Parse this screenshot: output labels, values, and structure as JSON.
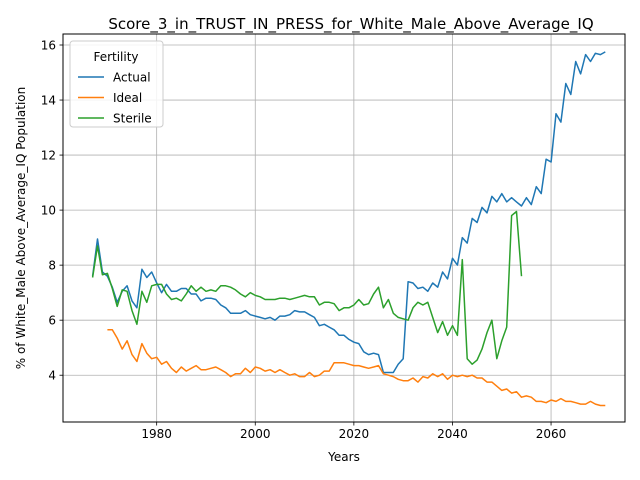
{
  "chart_data": {
    "type": "line",
    "title": "Score_3_in_TRUST_IN_PRESS_for_White_Male_Above_Average_IQ",
    "xlabel": "Years",
    "ylabel": "% of White_Male Above_Average_IQ Population",
    "xlim": [
      1961,
      2075
    ],
    "ylim": [
      2.3,
      16.4
    ],
    "x_ticks": [
      1980,
      2000,
      2020,
      2040,
      2060
    ],
    "y_ticks": [
      4,
      6,
      8,
      10,
      12,
      14,
      16
    ],
    "grid": true,
    "legend": {
      "title": "Fertility",
      "placement": "upper-left"
    },
    "series": [
      {
        "name": "Actual",
        "color": "#1f77b4",
        "points": [
          [
            1967,
            7.6
          ],
          [
            1968,
            8.95
          ],
          [
            1969,
            7.75
          ],
          [
            1970,
            7.6
          ],
          [
            1971,
            7.2
          ],
          [
            1972,
            6.65
          ],
          [
            1973,
            7.05
          ],
          [
            1974,
            7.25
          ],
          [
            1975,
            6.7
          ],
          [
            1976,
            6.45
          ],
          [
            1977,
            7.85
          ],
          [
            1978,
            7.55
          ],
          [
            1979,
            7.75
          ],
          [
            1980,
            7.35
          ],
          [
            1981,
            7.0
          ],
          [
            1982,
            7.3
          ],
          [
            1983,
            7.05
          ],
          [
            1984,
            7.05
          ],
          [
            1985,
            7.15
          ],
          [
            1986,
            7.15
          ],
          [
            1987,
            6.95
          ],
          [
            1988,
            6.95
          ],
          [
            1989,
            6.7
          ],
          [
            1990,
            6.8
          ],
          [
            1991,
            6.8
          ],
          [
            1992,
            6.75
          ],
          [
            1993,
            6.55
          ],
          [
            1994,
            6.45
          ],
          [
            1995,
            6.25
          ],
          [
            1996,
            6.25
          ],
          [
            1997,
            6.25
          ],
          [
            1998,
            6.35
          ],
          [
            1999,
            6.2
          ],
          [
            2000,
            6.15
          ],
          [
            2001,
            6.1
          ],
          [
            2002,
            6.05
          ],
          [
            2003,
            6.1
          ],
          [
            2004,
            6.0
          ],
          [
            2005,
            6.15
          ],
          [
            2006,
            6.15
          ],
          [
            2007,
            6.2
          ],
          [
            2008,
            6.35
          ],
          [
            2009,
            6.3
          ],
          [
            2010,
            6.3
          ],
          [
            2011,
            6.2
          ],
          [
            2012,
            6.1
          ],
          [
            2013,
            5.8
          ],
          [
            2014,
            5.85
          ],
          [
            2015,
            5.75
          ],
          [
            2016,
            5.65
          ],
          [
            2017,
            5.45
          ],
          [
            2018,
            5.45
          ],
          [
            2019,
            5.3
          ],
          [
            2020,
            5.2
          ],
          [
            2021,
            5.15
          ],
          [
            2022,
            4.85
          ],
          [
            2023,
            4.75
          ],
          [
            2024,
            4.8
          ],
          [
            2025,
            4.75
          ],
          [
            2026,
            4.1
          ],
          [
            2027,
            4.1
          ],
          [
            2028,
            4.1
          ],
          [
            2029,
            4.4
          ],
          [
            2030,
            4.6
          ],
          [
            2031,
            7.4
          ],
          [
            2032,
            7.35
          ],
          [
            2033,
            7.15
          ],
          [
            2034,
            7.2
          ],
          [
            2035,
            7.05
          ],
          [
            2036,
            7.35
          ],
          [
            2037,
            7.2
          ],
          [
            2038,
            7.75
          ],
          [
            2039,
            7.5
          ],
          [
            2040,
            8.25
          ],
          [
            2041,
            8.0
          ],
          [
            2042,
            9.0
          ],
          [
            2043,
            8.8
          ],
          [
            2044,
            9.7
          ],
          [
            2045,
            9.55
          ],
          [
            2046,
            10.1
          ],
          [
            2047,
            9.9
          ],
          [
            2048,
            10.5
          ],
          [
            2049,
            10.3
          ],
          [
            2050,
            10.6
          ],
          [
            2051,
            10.3
          ],
          [
            2052,
            10.45
          ],
          [
            2053,
            10.3
          ],
          [
            2054,
            10.15
          ],
          [
            2055,
            10.45
          ],
          [
            2056,
            10.2
          ],
          [
            2057,
            10.85
          ],
          [
            2058,
            10.6
          ],
          [
            2059,
            11.85
          ],
          [
            2060,
            11.75
          ],
          [
            2061,
            13.5
          ],
          [
            2062,
            13.2
          ],
          [
            2063,
            14.6
          ],
          [
            2064,
            14.2
          ],
          [
            2065,
            15.4
          ],
          [
            2066,
            14.95
          ],
          [
            2067,
            15.65
          ],
          [
            2068,
            15.4
          ],
          [
            2069,
            15.7
          ],
          [
            2070,
            15.65
          ],
          [
            2071,
            15.75
          ]
        ]
      },
      {
        "name": "Ideal",
        "color": "#ff7f0e",
        "points": [
          [
            1970,
            5.65
          ],
          [
            1971,
            5.65
          ],
          [
            1972,
            5.35
          ],
          [
            1973,
            4.95
          ],
          [
            1974,
            5.25
          ],
          [
            1975,
            4.75
          ],
          [
            1976,
            4.5
          ],
          [
            1977,
            5.15
          ],
          [
            1978,
            4.8
          ],
          [
            1979,
            4.6
          ],
          [
            1980,
            4.65
          ],
          [
            1981,
            4.4
          ],
          [
            1982,
            4.5
          ],
          [
            1983,
            4.25
          ],
          [
            1984,
            4.1
          ],
          [
            1985,
            4.3
          ],
          [
            1986,
            4.15
          ],
          [
            1987,
            4.25
          ],
          [
            1988,
            4.35
          ],
          [
            1989,
            4.2
          ],
          [
            1990,
            4.2
          ],
          [
            1991,
            4.25
          ],
          [
            1992,
            4.3
          ],
          [
            1993,
            4.2
          ],
          [
            1994,
            4.1
          ],
          [
            1995,
            3.95
          ],
          [
            1996,
            4.05
          ],
          [
            1997,
            4.05
          ],
          [
            1998,
            4.25
          ],
          [
            1999,
            4.1
          ],
          [
            2000,
            4.3
          ],
          [
            2001,
            4.25
          ],
          [
            2002,
            4.15
          ],
          [
            2003,
            4.2
          ],
          [
            2004,
            4.1
          ],
          [
            2005,
            4.2
          ],
          [
            2006,
            4.1
          ],
          [
            2007,
            4.0
          ],
          [
            2008,
            4.05
          ],
          [
            2009,
            3.95
          ],
          [
            2010,
            3.95
          ],
          [
            2011,
            4.1
          ],
          [
            2012,
            3.95
          ],
          [
            2013,
            4.0
          ],
          [
            2014,
            4.15
          ],
          [
            2015,
            4.15
          ],
          [
            2016,
            4.45
          ],
          [
            2017,
            4.45
          ],
          [
            2018,
            4.45
          ],
          [
            2019,
            4.4
          ],
          [
            2020,
            4.35
          ],
          [
            2021,
            4.35
          ],
          [
            2022,
            4.3
          ],
          [
            2023,
            4.25
          ],
          [
            2024,
            4.3
          ],
          [
            2025,
            4.35
          ],
          [
            2026,
            4.05
          ],
          [
            2027,
            4.0
          ],
          [
            2028,
            3.95
          ],
          [
            2029,
            3.85
          ],
          [
            2030,
            3.8
          ],
          [
            2031,
            3.8
          ],
          [
            2032,
            3.9
          ],
          [
            2033,
            3.75
          ],
          [
            2034,
            3.95
          ],
          [
            2035,
            3.9
          ],
          [
            2036,
            4.05
          ],
          [
            2037,
            3.95
          ],
          [
            2038,
            4.05
          ],
          [
            2039,
            3.85
          ],
          [
            2040,
            4.0
          ],
          [
            2041,
            3.95
          ],
          [
            2042,
            4.0
          ],
          [
            2043,
            3.95
          ],
          [
            2044,
            4.0
          ],
          [
            2045,
            3.9
          ],
          [
            2046,
            3.9
          ],
          [
            2047,
            3.75
          ],
          [
            2048,
            3.75
          ],
          [
            2049,
            3.6
          ],
          [
            2050,
            3.45
          ],
          [
            2051,
            3.5
          ],
          [
            2052,
            3.35
          ],
          [
            2053,
            3.4
          ],
          [
            2054,
            3.2
          ],
          [
            2055,
            3.25
          ],
          [
            2056,
            3.2
          ],
          [
            2057,
            3.05
          ],
          [
            2058,
            3.05
          ],
          [
            2059,
            3.0
          ],
          [
            2060,
            3.1
          ],
          [
            2061,
            3.05
          ],
          [
            2062,
            3.15
          ],
          [
            2063,
            3.05
          ],
          [
            2064,
            3.05
          ],
          [
            2065,
            3.0
          ],
          [
            2066,
            2.95
          ],
          [
            2067,
            2.95
          ],
          [
            2068,
            3.05
          ],
          [
            2069,
            2.95
          ],
          [
            2070,
            2.9
          ],
          [
            2071,
            2.9
          ]
        ]
      },
      {
        "name": "Sterile",
        "color": "#2ca02c",
        "points": [
          [
            1967,
            7.55
          ],
          [
            1968,
            8.7
          ],
          [
            1969,
            7.65
          ],
          [
            1970,
            7.7
          ],
          [
            1971,
            7.15
          ],
          [
            1972,
            6.5
          ],
          [
            1973,
            7.1
          ],
          [
            1974,
            7.05
          ],
          [
            1975,
            6.35
          ],
          [
            1976,
            5.85
          ],
          [
            1977,
            7.05
          ],
          [
            1978,
            6.65
          ],
          [
            1979,
            7.25
          ],
          [
            1980,
            7.3
          ],
          [
            1981,
            7.3
          ],
          [
            1982,
            6.95
          ],
          [
            1983,
            6.75
          ],
          [
            1984,
            6.8
          ],
          [
            1985,
            6.7
          ],
          [
            1986,
            6.95
          ],
          [
            1987,
            7.25
          ],
          [
            1988,
            7.05
          ],
          [
            1989,
            7.2
          ],
          [
            1990,
            7.05
          ],
          [
            1991,
            7.1
          ],
          [
            1992,
            7.05
          ],
          [
            1993,
            7.25
          ],
          [
            1994,
            7.25
          ],
          [
            1995,
            7.2
          ],
          [
            1996,
            7.1
          ],
          [
            1997,
            6.95
          ],
          [
            1998,
            6.85
          ],
          [
            1999,
            7.0
          ],
          [
            2000,
            6.9
          ],
          [
            2001,
            6.85
          ],
          [
            2002,
            6.75
          ],
          [
            2003,
            6.75
          ],
          [
            2004,
            6.75
          ],
          [
            2005,
            6.8
          ],
          [
            2006,
            6.8
          ],
          [
            2007,
            6.75
          ],
          [
            2008,
            6.8
          ],
          [
            2009,
            6.85
          ],
          [
            2010,
            6.9
          ],
          [
            2011,
            6.85
          ],
          [
            2012,
            6.85
          ],
          [
            2013,
            6.55
          ],
          [
            2014,
            6.65
          ],
          [
            2015,
            6.65
          ],
          [
            2016,
            6.6
          ],
          [
            2017,
            6.35
          ],
          [
            2018,
            6.45
          ],
          [
            2019,
            6.45
          ],
          [
            2020,
            6.55
          ],
          [
            2021,
            6.75
          ],
          [
            2022,
            6.55
          ],
          [
            2023,
            6.6
          ],
          [
            2024,
            6.95
          ],
          [
            2025,
            7.2
          ],
          [
            2026,
            6.45
          ],
          [
            2027,
            6.75
          ],
          [
            2028,
            6.25
          ],
          [
            2029,
            6.1
          ],
          [
            2030,
            6.05
          ],
          [
            2031,
            6.0
          ],
          [
            2032,
            6.45
          ],
          [
            2033,
            6.65
          ],
          [
            2034,
            6.55
          ],
          [
            2035,
            6.65
          ],
          [
            2036,
            6.1
          ],
          [
            2037,
            5.55
          ],
          [
            2038,
            5.95
          ],
          [
            2039,
            5.45
          ],
          [
            2040,
            5.8
          ],
          [
            2041,
            5.45
          ],
          [
            2042,
            8.2
          ],
          [
            2043,
            4.6
          ],
          [
            2044,
            4.4
          ],
          [
            2045,
            4.55
          ],
          [
            2046,
            4.95
          ],
          [
            2047,
            5.55
          ],
          [
            2048,
            6.0
          ],
          [
            2049,
            4.6
          ],
          [
            2050,
            5.25
          ],
          [
            2051,
            5.75
          ],
          [
            2052,
            9.8
          ],
          [
            2053,
            9.95
          ],
          [
            2054,
            7.6
          ]
        ]
      }
    ]
  }
}
